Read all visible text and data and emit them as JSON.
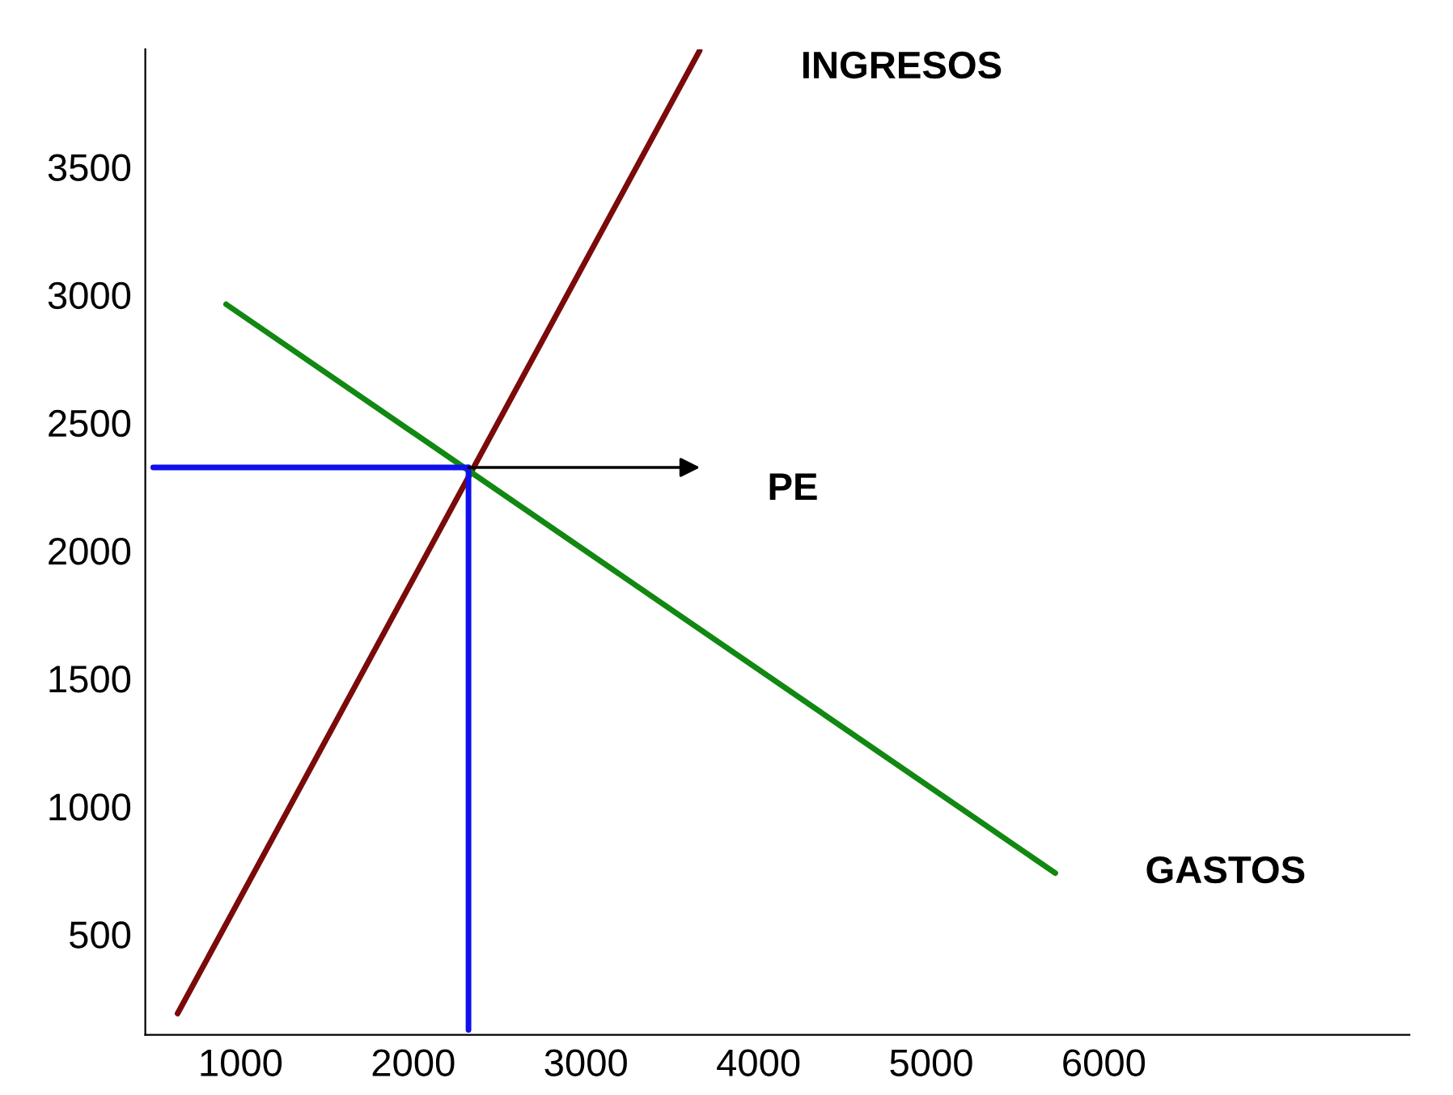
{
  "chart_data": {
    "type": "line",
    "series": [
      {
        "name": "INGRESOS",
        "color": "#7b0a0a",
        "x": [
          635,
          3659
        ],
        "values": [
          190,
          3955
        ]
      },
      {
        "name": "GASTOS",
        "color": "#118811",
        "x": [
          916,
          5719
        ],
        "values": [
          2963,
          739
        ]
      },
      {
        "color": "#1010ee",
        "x": [
          494,
          2320
        ],
        "values": [
          2325,
          2325
        ]
      },
      {
        "color": "#1010ee",
        "x": [
          2320,
          2320
        ],
        "values": [
          2325,
          126
        ]
      }
    ],
    "annotations": [
      "PE"
    ],
    "xlim": [
      448,
      7770
    ],
    "ylim": [
      107,
      3960
    ],
    "xticks": [
      1000,
      2000,
      3000,
      4000,
      5000,
      6000
    ],
    "yticks": [
      500,
      1000,
      1500,
      2000,
      2500,
      3000,
      3500
    ],
    "grid": false,
    "legend": false,
    "line_style": "solid",
    "marker": "none"
  }
}
